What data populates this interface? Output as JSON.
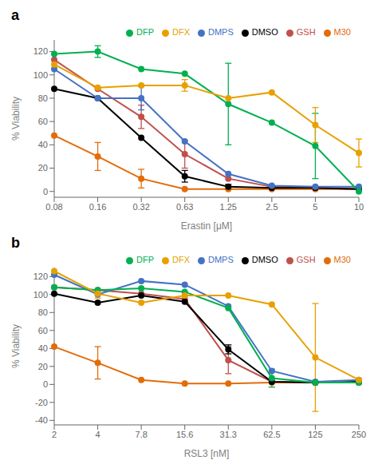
{
  "chart_data": [
    {
      "type": "line",
      "title": "a",
      "xlabel": "Erastin [μM]",
      "ylabel": "% Viability",
      "categories": [
        "0.08",
        "0.16",
        "0.32",
        "0.63",
        "1.25",
        "2.5",
        "5",
        "10"
      ],
      "ylim": [
        -5,
        130
      ],
      "yticks": [
        0,
        20,
        40,
        60,
        80,
        100,
        120
      ],
      "grid": false,
      "legend": "upper right",
      "marker": "circle",
      "series": [
        {
          "name": "M30",
          "color": "#E36C09",
          "values": [
            48,
            30,
            11,
            2,
            2,
            2,
            2,
            2
          ],
          "errors": [
            0,
            12,
            8,
            0,
            0,
            0,
            0,
            0
          ]
        },
        {
          "name": "GSH",
          "color": "#C0504D",
          "values": [
            113,
            88,
            64,
            32,
            11,
            4,
            3,
            2
          ],
          "errors": [
            0,
            0,
            10,
            12,
            0,
            0,
            0,
            0
          ]
        },
        {
          "name": "DMSO",
          "color": "#000000",
          "values": [
            88,
            80,
            46,
            13,
            4,
            3,
            3,
            2
          ],
          "errors": [
            0,
            0,
            0,
            5,
            2,
            0,
            0,
            0
          ]
        },
        {
          "name": "DMPS",
          "color": "#4472C4",
          "values": [
            105,
            80,
            80,
            43,
            15,
            5,
            4,
            4
          ],
          "errors": [
            0,
            0,
            10,
            0,
            0,
            0,
            0,
            0
          ]
        },
        {
          "name": "DFP",
          "color": "#00B050",
          "values": [
            118,
            120,
            105,
            101,
            75,
            59,
            39,
            0
          ],
          "errors": [
            0,
            5,
            0,
            0,
            35,
            0,
            28,
            0
          ]
        },
        {
          "name": "DFX",
          "color": "#E8A000",
          "values": [
            109,
            89,
            91,
            91,
            80,
            85,
            57,
            33
          ],
          "errors": [
            0,
            0,
            0,
            5,
            0,
            0,
            15,
            12
          ]
        }
      ]
    },
    {
      "type": "line",
      "title": "b",
      "xlabel": "RSL3 [nM]",
      "ylabel": "% Viability",
      "categories": [
        "2",
        "4",
        "7.8",
        "15.6",
        "31.3",
        "62.5",
        "125",
        "250"
      ],
      "ylim": [
        -45,
        130
      ],
      "yticks": [
        -40,
        -20,
        0,
        20,
        40,
        60,
        80,
        100,
        120
      ],
      "grid": false,
      "legend": "upper right",
      "marker": "circle",
      "series": [
        {
          "name": "M30",
          "color": "#E36C09",
          "values": [
            42,
            24,
            5,
            1,
            1,
            2,
            2,
            2
          ],
          "errors": [
            0,
            18,
            0,
            0,
            0,
            0,
            0,
            0
          ]
        },
        {
          "name": "GSH",
          "color": "#C0504D",
          "values": [
            108,
            105,
            101,
            95,
            27,
            3,
            2,
            2
          ],
          "errors": [
            0,
            0,
            0,
            0,
            15,
            0,
            0,
            0
          ]
        },
        {
          "name": "DMSO",
          "color": "#000000",
          "values": [
            101,
            91,
            99,
            92,
            39,
            3,
            2,
            3
          ],
          "errors": [
            0,
            0,
            0,
            0,
            5,
            0,
            0,
            0
          ]
        },
        {
          "name": "DMPS",
          "color": "#4472C4",
          "values": [
            122,
            100,
            115,
            111,
            87,
            15,
            3,
            5
          ],
          "errors": [
            0,
            0,
            0,
            0,
            0,
            0,
            0,
            0
          ]
        },
        {
          "name": "DFP",
          "color": "#00B050",
          "values": [
            108,
            105,
            107,
            103,
            85,
            7,
            2,
            2
          ],
          "errors": [
            0,
            0,
            0,
            0,
            0,
            10,
            0,
            0
          ]
        },
        {
          "name": "DFX",
          "color": "#E8A000",
          "values": [
            126,
            101,
            91,
            99,
            99,
            89,
            30,
            5
          ],
          "errors": [
            0,
            5,
            0,
            0,
            0,
            0,
            60,
            0
          ]
        }
      ]
    }
  ]
}
